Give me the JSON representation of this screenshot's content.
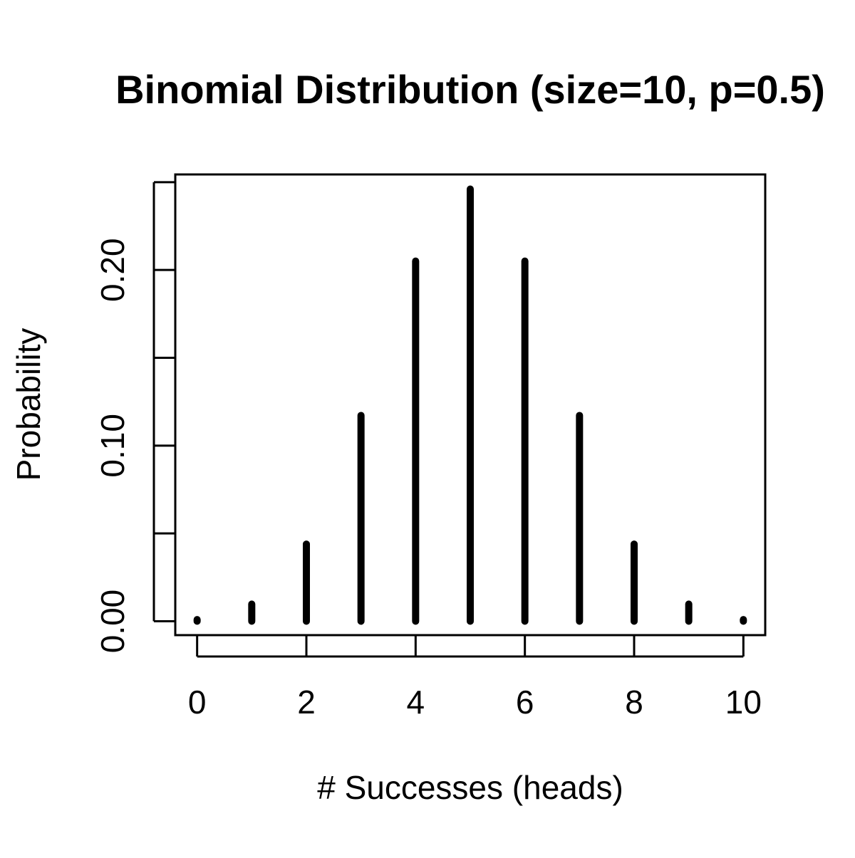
{
  "chart_data": {
    "type": "bar",
    "title": "Binomial Distribution (size=10, p=0.5)",
    "xlabel": "# Successes (heads)",
    "ylabel": "Probability",
    "x": [
      0,
      1,
      2,
      3,
      4,
      5,
      6,
      7,
      8,
      9,
      10
    ],
    "values": [
      0.000977,
      0.009766,
      0.043945,
      0.117188,
      0.205078,
      0.246094,
      0.205078,
      0.117188,
      0.043945,
      0.009766,
      0.000977
    ],
    "xlim": [
      -0.4,
      10.4
    ],
    "ylim": [
      -0.0079,
      0.2544
    ],
    "x_ticks": [
      0,
      2,
      4,
      6,
      8,
      10
    ],
    "x_minor_ticks": [
      0,
      2,
      4,
      6,
      8,
      10
    ],
    "x_tick_labels": [
      "0",
      "2",
      "4",
      "6",
      "8",
      "10"
    ],
    "y_ticks": [
      0.0,
      0.05,
      0.1,
      0.15,
      0.2,
      0.25
    ],
    "y_tick_labels": [
      "0.00",
      "",
      "0.10",
      "",
      "0.20",
      ""
    ],
    "grid": false,
    "legend": "none",
    "bar_color": "#000000"
  }
}
